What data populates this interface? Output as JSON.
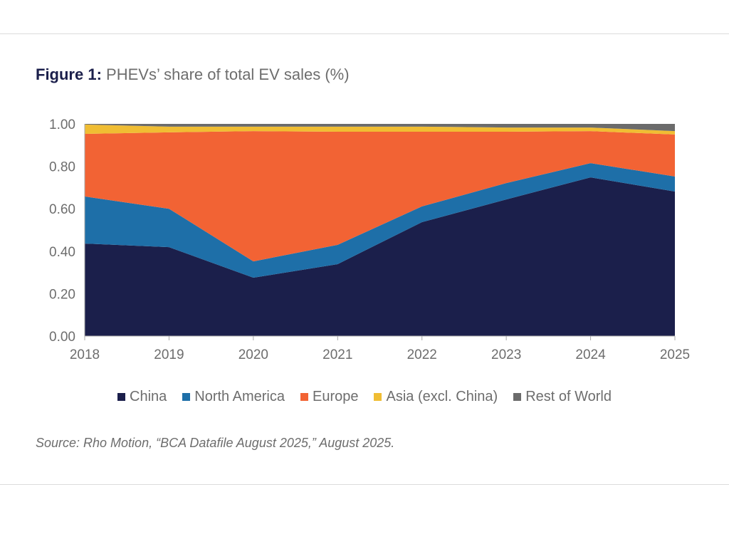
{
  "figure": {
    "label": "Figure 1:",
    "title": "PHEVs’ share of total EV sales (%)"
  },
  "source": "Source: Rho Motion, “BCA Datafile August 2025,” August 2025.",
  "chart_data": {
    "type": "area",
    "stacked": true,
    "title": "PHEVs’ share of total EV sales (%)",
    "xlabel": "",
    "ylabel": "",
    "x": [
      "2018",
      "2019",
      "2020",
      "2021",
      "2022",
      "2023",
      "2024",
      "2025"
    ],
    "ylim": [
      0,
      1.0
    ],
    "yticks": [
      "0.00",
      "0.20",
      "0.40",
      "0.60",
      "0.80",
      "1.00"
    ],
    "ytick_values": [
      0,
      0.2,
      0.4,
      0.6,
      0.8,
      1.0
    ],
    "grid": false,
    "legend_position": "bottom",
    "series": [
      {
        "name": "China",
        "color": "#1b1f4b",
        "values": [
          0.436,
          0.419,
          0.275,
          0.339,
          0.537,
          0.644,
          0.748,
          0.681
        ]
      },
      {
        "name": "North America",
        "color": "#1e6fa8",
        "values": [
          0.222,
          0.181,
          0.077,
          0.091,
          0.074,
          0.077,
          0.067,
          0.071
        ]
      },
      {
        "name": "Europe",
        "color": "#f26334",
        "values": [
          0.295,
          0.36,
          0.614,
          0.533,
          0.352,
          0.242,
          0.151,
          0.198
        ]
      },
      {
        "name": "Asia (excl. China)",
        "color": "#f0bd33",
        "values": [
          0.044,
          0.027,
          0.021,
          0.024,
          0.024,
          0.02,
          0.017,
          0.016
        ]
      },
      {
        "name": "Rest of World",
        "color": "#6b6b6b",
        "values": [
          0.003,
          0.013,
          0.013,
          0.013,
          0.013,
          0.017,
          0.017,
          0.034
        ]
      }
    ]
  }
}
